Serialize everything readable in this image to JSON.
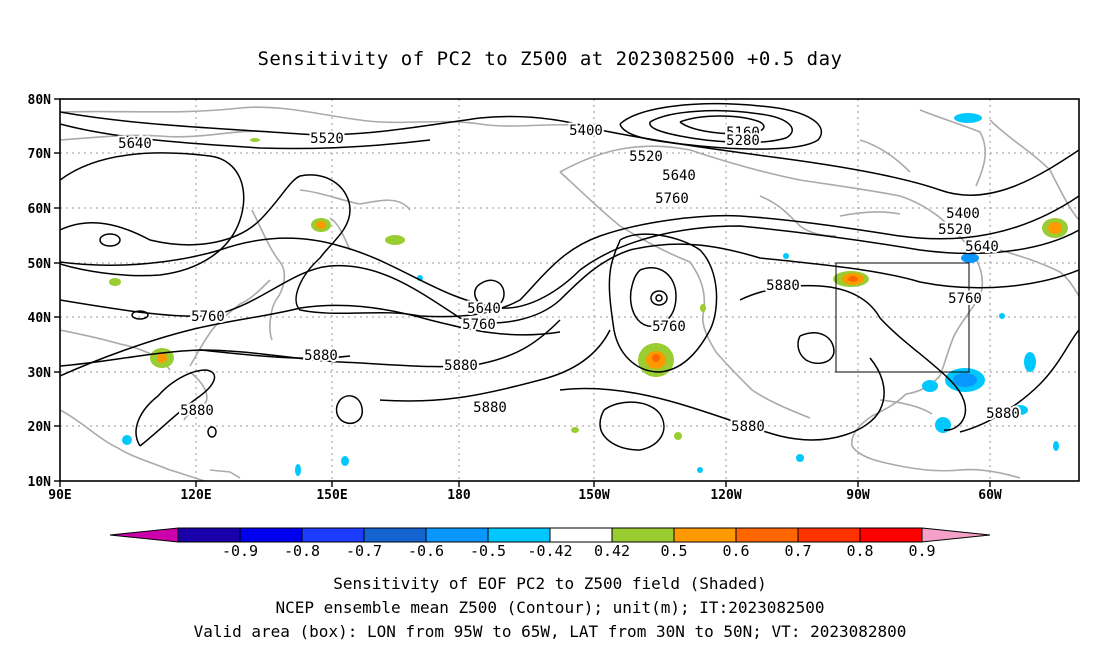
{
  "title": "Sensitivity of PC2 to Z500 at 2023082500 +0.5 day",
  "map": {
    "lat_labels": [
      "80N",
      "70N",
      "60N",
      "50N",
      "40N",
      "30N",
      "20N",
      "10N"
    ],
    "lon_labels": [
      "90E",
      "120E",
      "150E",
      "180",
      "150W",
      "120W",
      "90W",
      "60W"
    ],
    "contour_labels": [
      "5640",
      "5520",
      "5400",
      "5160",
      "5280",
      "5520",
      "5640",
      "5760",
      "5400",
      "5520",
      "5640",
      "5760",
      "5640",
      "5760",
      "5760",
      "5880",
      "5880",
      "5880",
      "5880",
      "5880",
      "5880",
      "5880",
      "5760"
    ],
    "valid_box": {
      "lon_range": [
        "95W",
        "65W"
      ],
      "lat_range": [
        "30N",
        "50N"
      ]
    }
  },
  "colorbar": {
    "labels": [
      "-0.9",
      "-0.8",
      "-0.7",
      "-0.6",
      "-0.5",
      "-0.42",
      "0.42",
      "0.5",
      "0.6",
      "0.7",
      "0.8",
      "0.9"
    ],
    "colors": [
      "#cc00aa",
      "#1a00aa",
      "#0000ee",
      "#1e3cff",
      "#1464d2",
      "#0a96ff",
      "#00c8ff",
      "#ffffff",
      "#9acd32",
      "#ff9900",
      "#ff6600",
      "#ff3300",
      "#ff0000",
      "#f4a0c8"
    ]
  },
  "captions": [
    "Sensitivity of EOF PC2 to Z500 field (Shaded)",
    "NCEP ensemble mean Z500 (Contour); unit(m); IT:2023082500",
    "Valid area (box): LON from 95W to 65W, LAT from 30N to 50N; VT: 2023082800"
  ]
}
